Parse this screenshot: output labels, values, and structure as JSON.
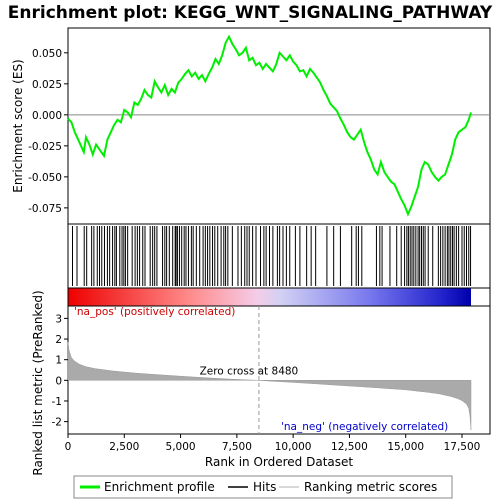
{
  "chart_data": {
    "type": "line",
    "title": "Enrichment plot: KEGG_WNT_SIGNALING_PATHWAY",
    "xlabel": "Rank in Ordered Dataset",
    "xlim": [
      0,
      18000
    ],
    "x_ticks": [
      0,
      2500,
      5000,
      7500,
      10000,
      12500,
      15000,
      17500
    ],
    "x_tick_labels": [
      "0",
      "2,500",
      "5,000",
      "7,500",
      "10,000",
      "12,500",
      "15,000",
      "17,500"
    ],
    "es_panel": {
      "ylabel": "Enrichment score (ES)",
      "ylim": [
        -0.088,
        0.07
      ],
      "y_ticks": [
        -0.075,
        -0.05,
        -0.025,
        0.0,
        0.025,
        0.05
      ],
      "y_tick_labels": [
        "-0.075",
        "-0.050",
        "-0.025",
        "0.000",
        "0.025",
        "0.050"
      ],
      "series": [
        {
          "name": "Enrichment profile",
          "color": "#00ee00",
          "x": [
            0,
            150,
            300,
            500,
            700,
            800,
            950,
            1100,
            1250,
            1400,
            1600,
            1750,
            1900,
            2050,
            2200,
            2350,
            2500,
            2650,
            2800,
            2950,
            3100,
            3250,
            3400,
            3550,
            3700,
            3850,
            4000,
            4150,
            4300,
            4450,
            4600,
            4750,
            4900,
            5050,
            5200,
            5350,
            5500,
            5650,
            5800,
            5950,
            6100,
            6250,
            6400,
            6550,
            6700,
            6850,
            7000,
            7150,
            7300,
            7450,
            7600,
            7750,
            7900,
            8050,
            8200,
            8350,
            8500,
            8650,
            8800,
            8950,
            9100,
            9250,
            9400,
            9550,
            9700,
            9850,
            10000,
            10150,
            10300,
            10450,
            10600,
            10750,
            10900,
            11050,
            11200,
            11350,
            11500,
            11650,
            11800,
            11950,
            12100,
            12250,
            12400,
            12550,
            12700,
            12850,
            13000,
            13150,
            13300,
            13450,
            13600,
            13750,
            13900,
            14050,
            14200,
            14350,
            14500,
            14650,
            14800,
            14950,
            15100,
            15250,
            15400,
            15550,
            15700,
            15850,
            16000,
            16150,
            16300,
            16450,
            16600,
            16750,
            16900,
            17050,
            17200,
            17350,
            17500,
            17650,
            17800,
            17900
          ],
          "y": [
            -0.003,
            -0.006,
            -0.014,
            -0.022,
            -0.03,
            -0.018,
            -0.024,
            -0.032,
            -0.024,
            -0.028,
            -0.033,
            -0.02,
            -0.014,
            -0.008,
            -0.004,
            -0.006,
            0.004,
            0.002,
            -0.002,
            0.01,
            0.008,
            0.013,
            0.02,
            0.016,
            0.014,
            0.027,
            0.022,
            0.018,
            0.024,
            0.016,
            0.021,
            0.018,
            0.026,
            0.029,
            0.033,
            0.036,
            0.031,
            0.034,
            0.029,
            0.032,
            0.027,
            0.033,
            0.038,
            0.045,
            0.041,
            0.048,
            0.058,
            0.063,
            0.057,
            0.053,
            0.048,
            0.05,
            0.054,
            0.044,
            0.046,
            0.04,
            0.042,
            0.037,
            0.041,
            0.038,
            0.035,
            0.041,
            0.05,
            0.047,
            0.044,
            0.048,
            0.043,
            0.04,
            0.035,
            0.036,
            0.031,
            0.037,
            0.034,
            0.03,
            0.026,
            0.02,
            0.015,
            0.009,
            0.006,
            0.003,
            -0.003,
            -0.008,
            -0.014,
            -0.018,
            -0.02,
            -0.016,
            -0.012,
            -0.022,
            -0.03,
            -0.036,
            -0.044,
            -0.048,
            -0.038,
            -0.046,
            -0.05,
            -0.054,
            -0.056,
            -0.062,
            -0.068,
            -0.073,
            -0.08,
            -0.074,
            -0.066,
            -0.058,
            -0.044,
            -0.038,
            -0.04,
            -0.046,
            -0.05,
            -0.053,
            -0.05,
            -0.048,
            -0.04,
            -0.032,
            -0.02,
            -0.014,
            -0.012,
            -0.01,
            -0.004,
            0.002
          ]
        }
      ]
    },
    "hits_panel": {
      "legend_label": "Hits",
      "color": "#000000",
      "hit_ranks": [
        200,
        400,
        720,
        830,
        1050,
        1150,
        1300,
        1400,
        1500,
        1620,
        1750,
        1850,
        1980,
        2080,
        2150,
        2300,
        2400,
        2480,
        2550,
        2650,
        2850,
        2980,
        3080,
        3180,
        3320,
        3420,
        3650,
        3760,
        3850,
        3950,
        4200,
        4300,
        4380,
        4500,
        4650,
        4760,
        4800,
        4860,
        4950,
        5050,
        5160,
        5240,
        5350,
        5480,
        5560,
        5700,
        5850,
        6000,
        6100,
        6200,
        6300,
        6420,
        6520,
        6650,
        6800,
        6920,
        7000,
        7100,
        7300,
        7550,
        7700,
        7850,
        7950,
        8050,
        8200,
        8350,
        8550,
        8700,
        8800,
        8950,
        9100,
        9300,
        9400,
        9550,
        9700,
        9850,
        10100,
        10300,
        10600,
        10800,
        11000,
        11500,
        11800,
        12100,
        12600,
        12800,
        12900,
        13050,
        13700,
        13850,
        13950,
        14300,
        14600,
        14800,
        14950,
        15050,
        15120,
        15200,
        15280,
        15360,
        15450,
        15550,
        15620,
        15700,
        15780,
        15860,
        16000,
        16200,
        16450,
        16550,
        16650,
        16750,
        16850,
        16920,
        17000,
        17080,
        17150,
        17250,
        17350,
        17500,
        17600,
        17700,
        17800,
        17880
      ]
    },
    "ranking_panel": {
      "ylabel": "Ranked list metric (PreRanked)",
      "legend_label": "Ranking metric scores",
      "color": "#aaaaaa",
      "ylim": [
        -2.6,
        3.6
      ],
      "y_ticks": [
        -2,
        -1,
        0,
        1,
        2,
        3
      ],
      "y_tick_labels": [
        "-2",
        "-1",
        "0",
        "1",
        "2",
        "3"
      ],
      "x": [
        0,
        50,
        150,
        300,
        500,
        800,
        1200,
        2000,
        3000,
        4000,
        5000,
        6000,
        7000,
        8000,
        8480,
        9000,
        10000,
        11000,
        12000,
        13000,
        14000,
        15000,
        15500,
        16000,
        16500,
        17000,
        17300,
        17500,
        17700,
        17800,
        17850,
        17900
      ],
      "y": [
        1.85,
        1.45,
        1.1,
        0.92,
        0.78,
        0.66,
        0.57,
        0.45,
        0.35,
        0.27,
        0.2,
        0.13,
        0.07,
        0.02,
        0.0,
        -0.04,
        -0.1,
        -0.17,
        -0.24,
        -0.31,
        -0.38,
        -0.46,
        -0.52,
        -0.58,
        -0.66,
        -0.78,
        -0.88,
        -0.98,
        -1.15,
        -1.35,
        -1.7,
        -2.4
      ],
      "zero_cross_label": "Zero cross at 8480",
      "zero_cross_rank": 8480,
      "pos_label": "'na_pos' (positively correlated)",
      "neg_label": "'na_neg' (negatively correlated)",
      "pos_color": "#cc0000",
      "neg_color": "#0000cc"
    },
    "legend": {
      "placement": "bottom",
      "entries": [
        {
          "label": "Enrichment profile",
          "color": "#00ee00"
        },
        {
          "label": "Hits",
          "color": "#000000"
        },
        {
          "label": "Ranking metric scores",
          "color": "#aaaaaa"
        }
      ]
    }
  }
}
